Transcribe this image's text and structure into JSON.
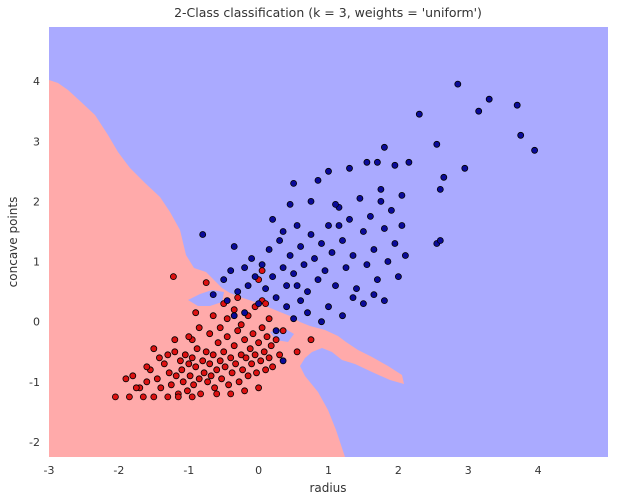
{
  "chart_data": {
    "type": "scatter",
    "title": "2-Class classification (k = 3, weights = 'uniform')",
    "xlabel": "radius",
    "ylabel": "concave points",
    "xlim": [
      -3,
      5
    ],
    "ylim": [
      -2.25,
      4.9
    ],
    "x_ticks": [
      "-3",
      "-2",
      "-1",
      "0",
      "1",
      "2",
      "3",
      "4"
    ],
    "y_ticks": [
      "-2",
      "-1",
      "0",
      "1",
      "2",
      "3",
      "4"
    ],
    "grid": false,
    "background_regions": [
      {
        "class": "class 1",
        "color": "#aaaaff"
      },
      {
        "class": "class 0",
        "color": "#ffaaaa"
      }
    ],
    "series": [
      {
        "color": "#dd1111",
        "points": [
          [
            -2.05,
            -1.25
          ],
          [
            -1.85,
            -1.25
          ],
          [
            -1.8,
            -0.9
          ],
          [
            -1.7,
            -1.1
          ],
          [
            -1.65,
            -1.25
          ],
          [
            -1.6,
            -1.0
          ],
          [
            -1.55,
            -0.8
          ],
          [
            -1.5,
            -1.25
          ],
          [
            -1.45,
            -0.95
          ],
          [
            -1.42,
            -0.6
          ],
          [
            -1.4,
            -1.1
          ],
          [
            -1.35,
            -0.7
          ],
          [
            -1.3,
            -1.25
          ],
          [
            -1.28,
            -0.85
          ],
          [
            -1.25,
            -1.05
          ],
          [
            -1.22,
            0.75
          ],
          [
            -1.2,
            -0.5
          ],
          [
            -1.18,
            -0.9
          ],
          [
            -1.15,
            -1.2
          ],
          [
            -1.12,
            -0.65
          ],
          [
            -1.1,
            -0.8
          ],
          [
            -1.08,
            -1.0
          ],
          [
            -1.05,
            -0.55
          ],
          [
            -1.02,
            -1.15
          ],
          [
            -1.0,
            -0.7
          ],
          [
            -0.98,
            -0.9
          ],
          [
            -0.95,
            -0.6
          ],
          [
            -0.93,
            -1.05
          ],
          [
            -0.9,
            -0.75
          ],
          [
            -0.88,
            -0.45
          ],
          [
            -0.85,
            -0.95
          ],
          [
            -0.83,
            -1.2
          ],
          [
            -0.8,
            -0.65
          ],
          [
            -0.78,
            -0.85
          ],
          [
            -0.75,
            -0.5
          ],
          [
            -0.73,
            -1.0
          ],
          [
            -0.7,
            -0.7
          ],
          [
            -0.68,
            -0.9
          ],
          [
            -0.65,
            -0.55
          ],
          [
            -0.63,
            -1.1
          ],
          [
            -0.6,
            -0.8
          ],
          [
            -0.58,
            -0.35
          ],
          [
            -0.55,
            -0.65
          ],
          [
            -0.53,
            -0.95
          ],
          [
            -0.5,
            -0.5
          ],
          [
            -0.48,
            -0.75
          ],
          [
            -0.45,
            -0.25
          ],
          [
            -0.43,
            -1.05
          ],
          [
            -0.4,
            -0.6
          ],
          [
            -0.38,
            -0.85
          ],
          [
            -0.35,
            -0.4
          ],
          [
            -0.33,
            -0.7
          ],
          [
            -0.3,
            -0.15
          ],
          [
            -0.28,
            -1.0
          ],
          [
            -0.25,
            -0.55
          ],
          [
            -0.23,
            -0.8
          ],
          [
            -0.2,
            -0.3
          ],
          [
            -0.18,
            -0.6
          ],
          [
            -0.15,
            -0.9
          ],
          [
            -0.12,
            -0.45
          ],
          [
            -0.1,
            -0.7
          ],
          [
            -0.08,
            -0.2
          ],
          [
            -0.05,
            -0.55
          ],
          [
            -0.03,
            -0.85
          ],
          [
            0.0,
            -0.35
          ],
          [
            0.03,
            -0.65
          ],
          [
            0.05,
            -0.1
          ],
          [
            0.08,
            -0.5
          ],
          [
            0.1,
            -0.8
          ],
          [
            0.12,
            -0.25
          ],
          [
            0.15,
            -0.6
          ],
          [
            0.18,
            -0.4
          ],
          [
            0.2,
            -0.75
          ],
          [
            0.25,
            -0.3
          ],
          [
            0.3,
            -0.55
          ],
          [
            0.35,
            -0.15
          ],
          [
            -0.95,
            -0.3
          ],
          [
            -0.9,
            0.15
          ],
          [
            -0.7,
            -0.2
          ],
          [
            -0.65,
            0.1
          ],
          [
            -0.55,
            -0.1
          ],
          [
            -0.45,
            0.05
          ],
          [
            -0.35,
            0.2
          ],
          [
            -0.25,
            -0.05
          ],
          [
            -0.15,
            0.1
          ],
          [
            -0.05,
            0.25
          ],
          [
            0.05,
            0.35
          ],
          [
            0.0,
            0.7
          ],
          [
            0.05,
            0.85
          ],
          [
            -0.3,
            0.4
          ],
          [
            -0.5,
            0.3
          ],
          [
            -0.75,
            0.65
          ],
          [
            -1.5,
            -0.45
          ],
          [
            -1.6,
            -0.75
          ],
          [
            -1.75,
            -1.1
          ],
          [
            -1.9,
            -0.95
          ],
          [
            -1.0,
            -0.25
          ],
          [
            -0.85,
            -0.1
          ],
          [
            0.1,
            0.3
          ],
          [
            0.15,
            0.05
          ],
          [
            0.55,
            -0.5
          ],
          [
            0.75,
            -0.3
          ],
          [
            -1.2,
            -0.3
          ],
          [
            -1.3,
            -0.55
          ],
          [
            -0.6,
            -1.2
          ],
          [
            -0.4,
            -1.2
          ],
          [
            -0.2,
            -1.15
          ],
          [
            0.0,
            -1.1
          ],
          [
            -0.95,
            -1.25
          ],
          [
            -1.15,
            -1.25
          ]
        ]
      },
      {
        "color": "#0a0a99",
        "points": [
          [
            -0.8,
            1.45
          ],
          [
            -0.5,
            0.7
          ],
          [
            -0.4,
            0.85
          ],
          [
            -0.35,
            1.25
          ],
          [
            -0.3,
            0.5
          ],
          [
            -0.2,
            0.9
          ],
          [
            -0.15,
            0.6
          ],
          [
            -0.1,
            1.05
          ],
          [
            -0.05,
            0.75
          ],
          [
            0.0,
            0.3
          ],
          [
            0.05,
            0.95
          ],
          [
            0.1,
            0.55
          ],
          [
            0.15,
            1.2
          ],
          [
            0.2,
            0.75
          ],
          [
            0.25,
            0.4
          ],
          [
            0.3,
            1.35
          ],
          [
            0.35,
            0.9
          ],
          [
            0.4,
            0.6
          ],
          [
            0.45,
            1.1
          ],
          [
            0.5,
            0.8
          ],
          [
            0.5,
            2.3
          ],
          [
            0.45,
            1.95
          ],
          [
            0.55,
            1.6
          ],
          [
            0.6,
            1.25
          ],
          [
            0.65,
            0.95
          ],
          [
            0.7,
            0.5
          ],
          [
            0.75,
            1.45
          ],
          [
            0.8,
            1.05
          ],
          [
            0.85,
            0.7
          ],
          [
            0.9,
            1.3
          ],
          [
            0.95,
            0.85
          ],
          [
            1.0,
            1.6
          ],
          [
            1.05,
            1.15
          ],
          [
            1.1,
            0.6
          ],
          [
            1.15,
            1.9
          ],
          [
            1.2,
            1.35
          ],
          [
            1.25,
            0.9
          ],
          [
            1.3,
            1.7
          ],
          [
            1.35,
            1.1
          ],
          [
            1.4,
            0.55
          ],
          [
            1.45,
            2.05
          ],
          [
            1.5,
            1.5
          ],
          [
            1.55,
            0.95
          ],
          [
            1.6,
            1.75
          ],
          [
            1.65,
            1.2
          ],
          [
            1.7,
            0.7
          ],
          [
            1.75,
            2.2
          ],
          [
            1.8,
            1.55
          ],
          [
            1.85,
            1.0
          ],
          [
            1.9,
            1.85
          ],
          [
            1.95,
            1.3
          ],
          [
            2.0,
            0.75
          ],
          [
            2.05,
            1.6
          ],
          [
            2.1,
            1.1
          ],
          [
            1.3,
            2.55
          ],
          [
            1.55,
            2.65
          ],
          [
            1.7,
            2.65
          ],
          [
            1.8,
            2.9
          ],
          [
            1.95,
            2.6
          ],
          [
            2.05,
            2.1
          ],
          [
            2.3,
            3.45
          ],
          [
            2.55,
            2.95
          ],
          [
            2.6,
            2.2
          ],
          [
            2.65,
            2.4
          ],
          [
            2.85,
            3.95
          ],
          [
            2.95,
            2.55
          ],
          [
            3.15,
            3.5
          ],
          [
            3.3,
            3.7
          ],
          [
            3.7,
            3.6
          ],
          [
            3.75,
            3.1
          ],
          [
            3.95,
            2.85
          ],
          [
            1.75,
            2.0
          ],
          [
            2.15,
            2.65
          ],
          [
            2.55,
            1.3
          ],
          [
            2.6,
            1.35
          ],
          [
            1.0,
            2.5
          ],
          [
            0.85,
            2.35
          ],
          [
            1.1,
            1.95
          ],
          [
            0.75,
            2.0
          ],
          [
            0.35,
            1.5
          ],
          [
            0.2,
            1.7
          ],
          [
            0.4,
            0.25
          ],
          [
            0.5,
            0.05
          ],
          [
            0.6,
            0.35
          ],
          [
            0.7,
            0.15
          ],
          [
            0.9,
            0.0
          ],
          [
            1.0,
            0.25
          ],
          [
            1.2,
            0.1
          ],
          [
            1.35,
            0.4
          ],
          [
            1.5,
            0.3
          ],
          [
            1.65,
            0.45
          ],
          [
            1.8,
            0.35
          ],
          [
            -0.35,
            0.1
          ],
          [
            -0.2,
            0.15
          ],
          [
            -0.45,
            0.35
          ],
          [
            -0.65,
            0.45
          ],
          [
            0.25,
            -0.15
          ],
          [
            0.35,
            -0.65
          ],
          [
            0.55,
            0.6
          ],
          [
            1.15,
            1.6
          ]
        ]
      }
    ]
  }
}
